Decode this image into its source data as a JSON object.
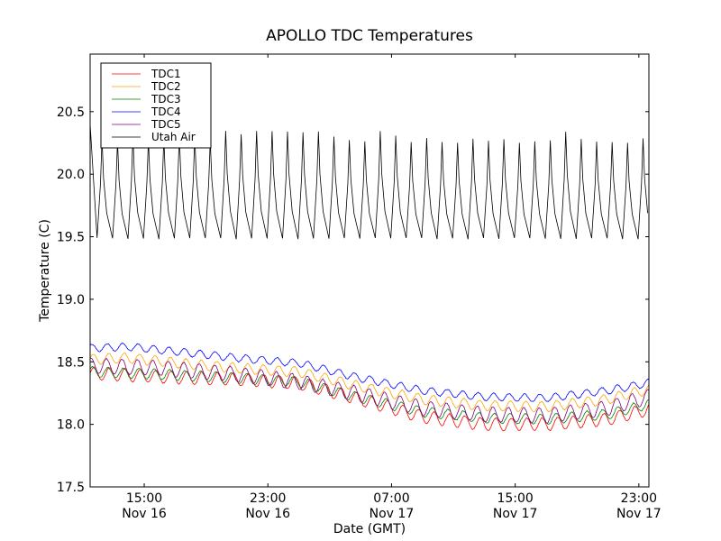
{
  "chart_data": {
    "type": "line",
    "title": "APOLLO TDC Temperatures",
    "xlabel": "Date (GMT)",
    "ylabel": "Temperature (C)",
    "xlim_hours_from_nov16_00": [
      11.5,
      47.65
    ],
    "ylim": [
      17.5,
      20.96
    ],
    "yticks": [
      17.5,
      18.0,
      18.5,
      19.0,
      19.5,
      20.0,
      20.5
    ],
    "ytick_labels": [
      "17.5",
      "18.0",
      "18.5",
      "19.0",
      "19.5",
      "20.0",
      "20.5"
    ],
    "xticks_hours_from_nov16_00": [
      15,
      23,
      31,
      39,
      47
    ],
    "xtick_labels": [
      {
        "time": "15:00",
        "date": "Nov 16"
      },
      {
        "time": "23:00",
        "date": "Nov 16"
      },
      {
        "time": "07:00",
        "date": "Nov 17"
      },
      {
        "time": "15:00",
        "date": "Nov 17"
      },
      {
        "time": "23:00",
        "date": "Nov 17"
      }
    ],
    "grid": false,
    "legend_placement": "top-left",
    "series": [
      {
        "name": "TDC1",
        "color": "#ff0000",
        "baseline_knots": [
          [
            11.5,
            18.41
          ],
          [
            16,
            18.38
          ],
          [
            21,
            18.36
          ],
          [
            25,
            18.33
          ],
          [
            29,
            18.2
          ],
          [
            33,
            18.06
          ],
          [
            37,
            18.0
          ],
          [
            41,
            18.0
          ],
          [
            45,
            18.04
          ],
          [
            47.65,
            18.12
          ]
        ],
        "oscillation_amplitude": 0.05
      },
      {
        "name": "TDC2",
        "color": "#ffa500",
        "baseline_knots": [
          [
            11.5,
            18.52
          ],
          [
            14,
            18.53
          ],
          [
            18,
            18.48
          ],
          [
            22,
            18.44
          ],
          [
            25,
            18.42
          ],
          [
            29,
            18.3
          ],
          [
            33,
            18.2
          ],
          [
            37,
            18.15
          ],
          [
            41,
            18.14
          ],
          [
            45,
            18.2
          ],
          [
            47.65,
            18.28
          ]
        ],
        "oscillation_amplitude": 0.04
      },
      {
        "name": "TDC3",
        "color": "#008000",
        "baseline_knots": [
          [
            11.5,
            18.42
          ],
          [
            16,
            18.4
          ],
          [
            21,
            18.37
          ],
          [
            25,
            18.34
          ],
          [
            29,
            18.21
          ],
          [
            33,
            18.1
          ],
          [
            37,
            18.05
          ],
          [
            41,
            18.04
          ],
          [
            45,
            18.08
          ],
          [
            47.65,
            18.16
          ]
        ],
        "oscillation_amplitude": 0.04
      },
      {
        "name": "TDC4",
        "color": "#0000ff",
        "baseline_knots": [
          [
            11.5,
            18.61
          ],
          [
            14,
            18.62
          ],
          [
            18,
            18.57
          ],
          [
            22,
            18.52
          ],
          [
            25,
            18.49
          ],
          [
            29,
            18.37
          ],
          [
            33,
            18.27
          ],
          [
            37,
            18.22
          ],
          [
            41,
            18.21
          ],
          [
            45,
            18.27
          ],
          [
            47.65,
            18.33
          ]
        ],
        "oscillation_amplitude": 0.03
      },
      {
        "name": "TDC5",
        "color": "#800080",
        "baseline_knots": [
          [
            11.5,
            18.47
          ],
          [
            16,
            18.45
          ],
          [
            21,
            18.4
          ],
          [
            25,
            18.34
          ],
          [
            29,
            18.24
          ],
          [
            33,
            18.13
          ],
          [
            37,
            18.08
          ],
          [
            41,
            18.07
          ],
          [
            45,
            18.13
          ],
          [
            47.65,
            18.22
          ]
        ],
        "oscillation_amplitude": 0.06
      },
      {
        "name": "Utah Air",
        "color": "#000000",
        "period_hours": 1.0,
        "min_temperature": 19.49,
        "max_temperature_range": [
          20.25,
          20.36
        ],
        "start_value": 20.4
      }
    ]
  }
}
